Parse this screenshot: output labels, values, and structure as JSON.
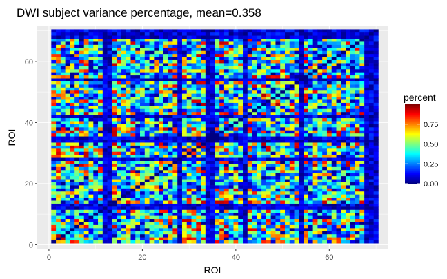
{
  "chart_data": {
    "type": "heatmap",
    "title": "DWI subject variance percentage, mean=0.358",
    "xlabel": "ROI",
    "ylabel": "ROI",
    "xlim": [
      -2.5,
      72.5
    ],
    "ylim": [
      -1.5,
      71.5
    ],
    "n_rows": 70,
    "n_cols": 70,
    "x_ticks": [
      0,
      20,
      40,
      60
    ],
    "y_ticks": [
      0,
      20,
      40,
      60
    ],
    "x_tick_labels": [
      "0",
      "20",
      "40",
      "60"
    ],
    "y_tick_labels": [
      "0",
      "20",
      "40",
      "60"
    ],
    "grid": true,
    "fill_scale": {
      "name": "percent",
      "min": 0,
      "max": 1,
      "breaks": [
        0,
        0.25,
        0.5,
        0.75
      ],
      "break_labels": [
        "0.00",
        "0.25",
        "0.50",
        "0.75"
      ],
      "colors": [
        "#00007F",
        "#0000FF",
        "#007FFF",
        "#00FFFF",
        "#7FFF7F",
        "#FFFF00",
        "#FF7F00",
        "#FF0000",
        "#7F0000"
      ]
    },
    "mean": 0.358,
    "dark_roi_bands": [
      11,
      12,
      27,
      33,
      34,
      41,
      53,
      67,
      68,
      69
    ],
    "low_value_rois": [
      3,
      8,
      9,
      15,
      18,
      19,
      20,
      21,
      22,
      38,
      40,
      44,
      50,
      55,
      57,
      60,
      62,
      64
    ],
    "legend_position": "right",
    "background": "#EBEBEB"
  }
}
